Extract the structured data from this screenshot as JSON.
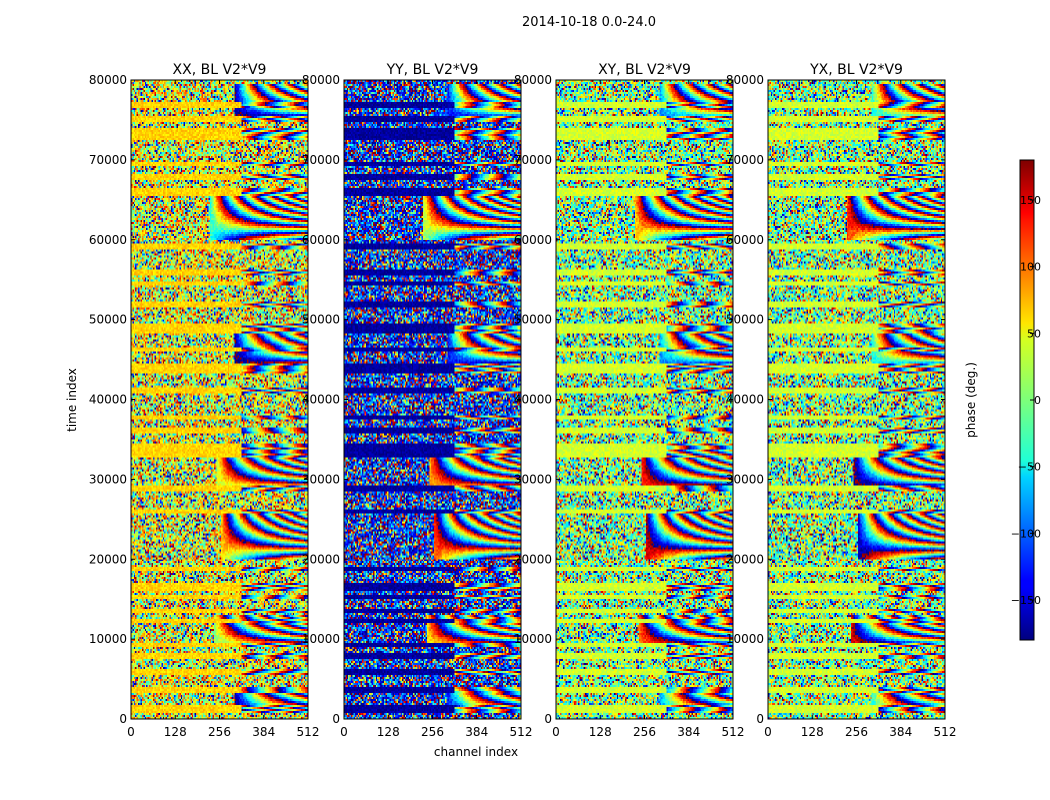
{
  "chart_data": {
    "type": "heatmap",
    "suptitle": "2014-10-18 0.0-24.0",
    "xlabel": "channel index",
    "ylabel": "time index",
    "xlim": [
      0,
      512
    ],
    "ylim": [
      0,
      80000
    ],
    "xticks": [
      0,
      128,
      256,
      384,
      512
    ],
    "yticks": [
      0,
      10000,
      20000,
      30000,
      40000,
      50000,
      60000,
      70000,
      80000
    ],
    "colorbar": {
      "label": "phase (deg.)",
      "range": [
        -180,
        180
      ],
      "ticks": [
        -150,
        -100,
        -50,
        0,
        50,
        100,
        150
      ],
      "tick_labels": [
        "−150",
        "−100",
        "−50",
        "0",
        "50",
        "100",
        "150"
      ]
    },
    "panels": [
      {
        "title": "XX, BL V2*V9",
        "stripe_phase_deg": 60,
        "noise_bias_deg": 35
      },
      {
        "title": "YY, BL V2*V9",
        "stripe_phase_deg": -170,
        "noise_bias_deg": -130
      },
      {
        "title": "XY, BL V2*V9",
        "stripe_phase_deg": 30,
        "noise_bias_deg": 0
      },
      {
        "title": "YX, BL V2*V9",
        "stripe_phase_deg": 30,
        "noise_bias_deg": 0
      }
    ],
    "flag_bands_time_index": [
      [
        800,
        1700
      ],
      [
        3200,
        3900
      ],
      [
        5600,
        6200
      ],
      [
        7600,
        8200
      ],
      [
        9000,
        9500
      ],
      [
        12000,
        12600
      ],
      [
        13200,
        13800
      ],
      [
        15000,
        15600
      ],
      [
        16000,
        17100
      ],
      [
        18400,
        19000
      ],
      [
        25800,
        26300
      ],
      [
        28600,
        29200
      ],
      [
        32800,
        34500
      ],
      [
        35800,
        36400
      ],
      [
        37400,
        38000
      ],
      [
        40800,
        41400
      ],
      [
        43200,
        44400
      ],
      [
        46000,
        46600
      ],
      [
        48200,
        49400
      ],
      [
        51600,
        52300
      ],
      [
        54200,
        54800
      ],
      [
        55600,
        56200
      ],
      [
        58800,
        59400
      ],
      [
        65500,
        66600
      ],
      [
        67600,
        68200
      ],
      [
        69200,
        69800
      ],
      [
        72600,
        73900
      ],
      [
        74800,
        75400
      ],
      [
        76600,
        77200
      ]
    ],
    "fringe_regions": [
      {
        "t": [
          20000,
          26000
        ],
        "ch": [
          260,
          512
        ]
      },
      {
        "t": [
          60000,
          66000
        ],
        "ch": [
          230,
          512
        ]
      },
      {
        "t": [
          44000,
          49000
        ],
        "ch": [
          300,
          512
        ]
      },
      {
        "t": [
          29000,
          33000
        ],
        "ch": [
          250,
          512
        ]
      },
      {
        "t": [
          9000,
          13000
        ],
        "ch": [
          240,
          512
        ]
      },
      {
        "t": [
          75000,
          79500
        ],
        "ch": [
          300,
          512
        ]
      },
      {
        "t": [
          1000,
          4000
        ],
        "ch": [
          300,
          512
        ]
      }
    ]
  }
}
